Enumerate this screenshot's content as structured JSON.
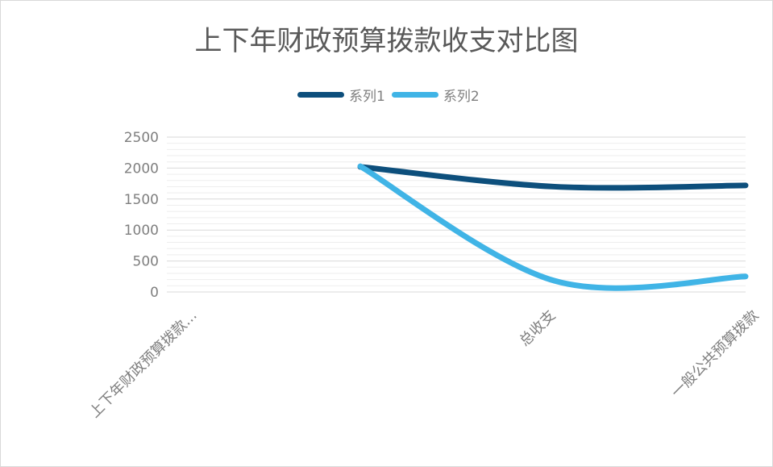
{
  "colors": {
    "series1": "#0d4f7c",
    "series2": "#40b4e6",
    "grid_major": "#d9d9d9",
    "grid_minor": "#eeeeee",
    "text": "#7f7f7f",
    "title": "#595959"
  },
  "chart_data": {
    "type": "line",
    "title": "上下年财政预算拨款收支对比图",
    "xlabel": "",
    "ylabel": "",
    "categories": [
      "上下年财政预算拨款...",
      "总收支",
      "一般公共预算拨款"
    ],
    "series": [
      {
        "name": "系列1",
        "values": [
          2020,
          1700,
          1720
        ]
      },
      {
        "name": "系列2",
        "values": [
          2030,
          180,
          250
        ]
      }
    ],
    "ylim": [
      0,
      2500
    ],
    "yticks": [
      "0",
      "500",
      "1000",
      "1500",
      "2000",
      "2500"
    ],
    "grid": true,
    "legend": "top",
    "smooth": true
  }
}
